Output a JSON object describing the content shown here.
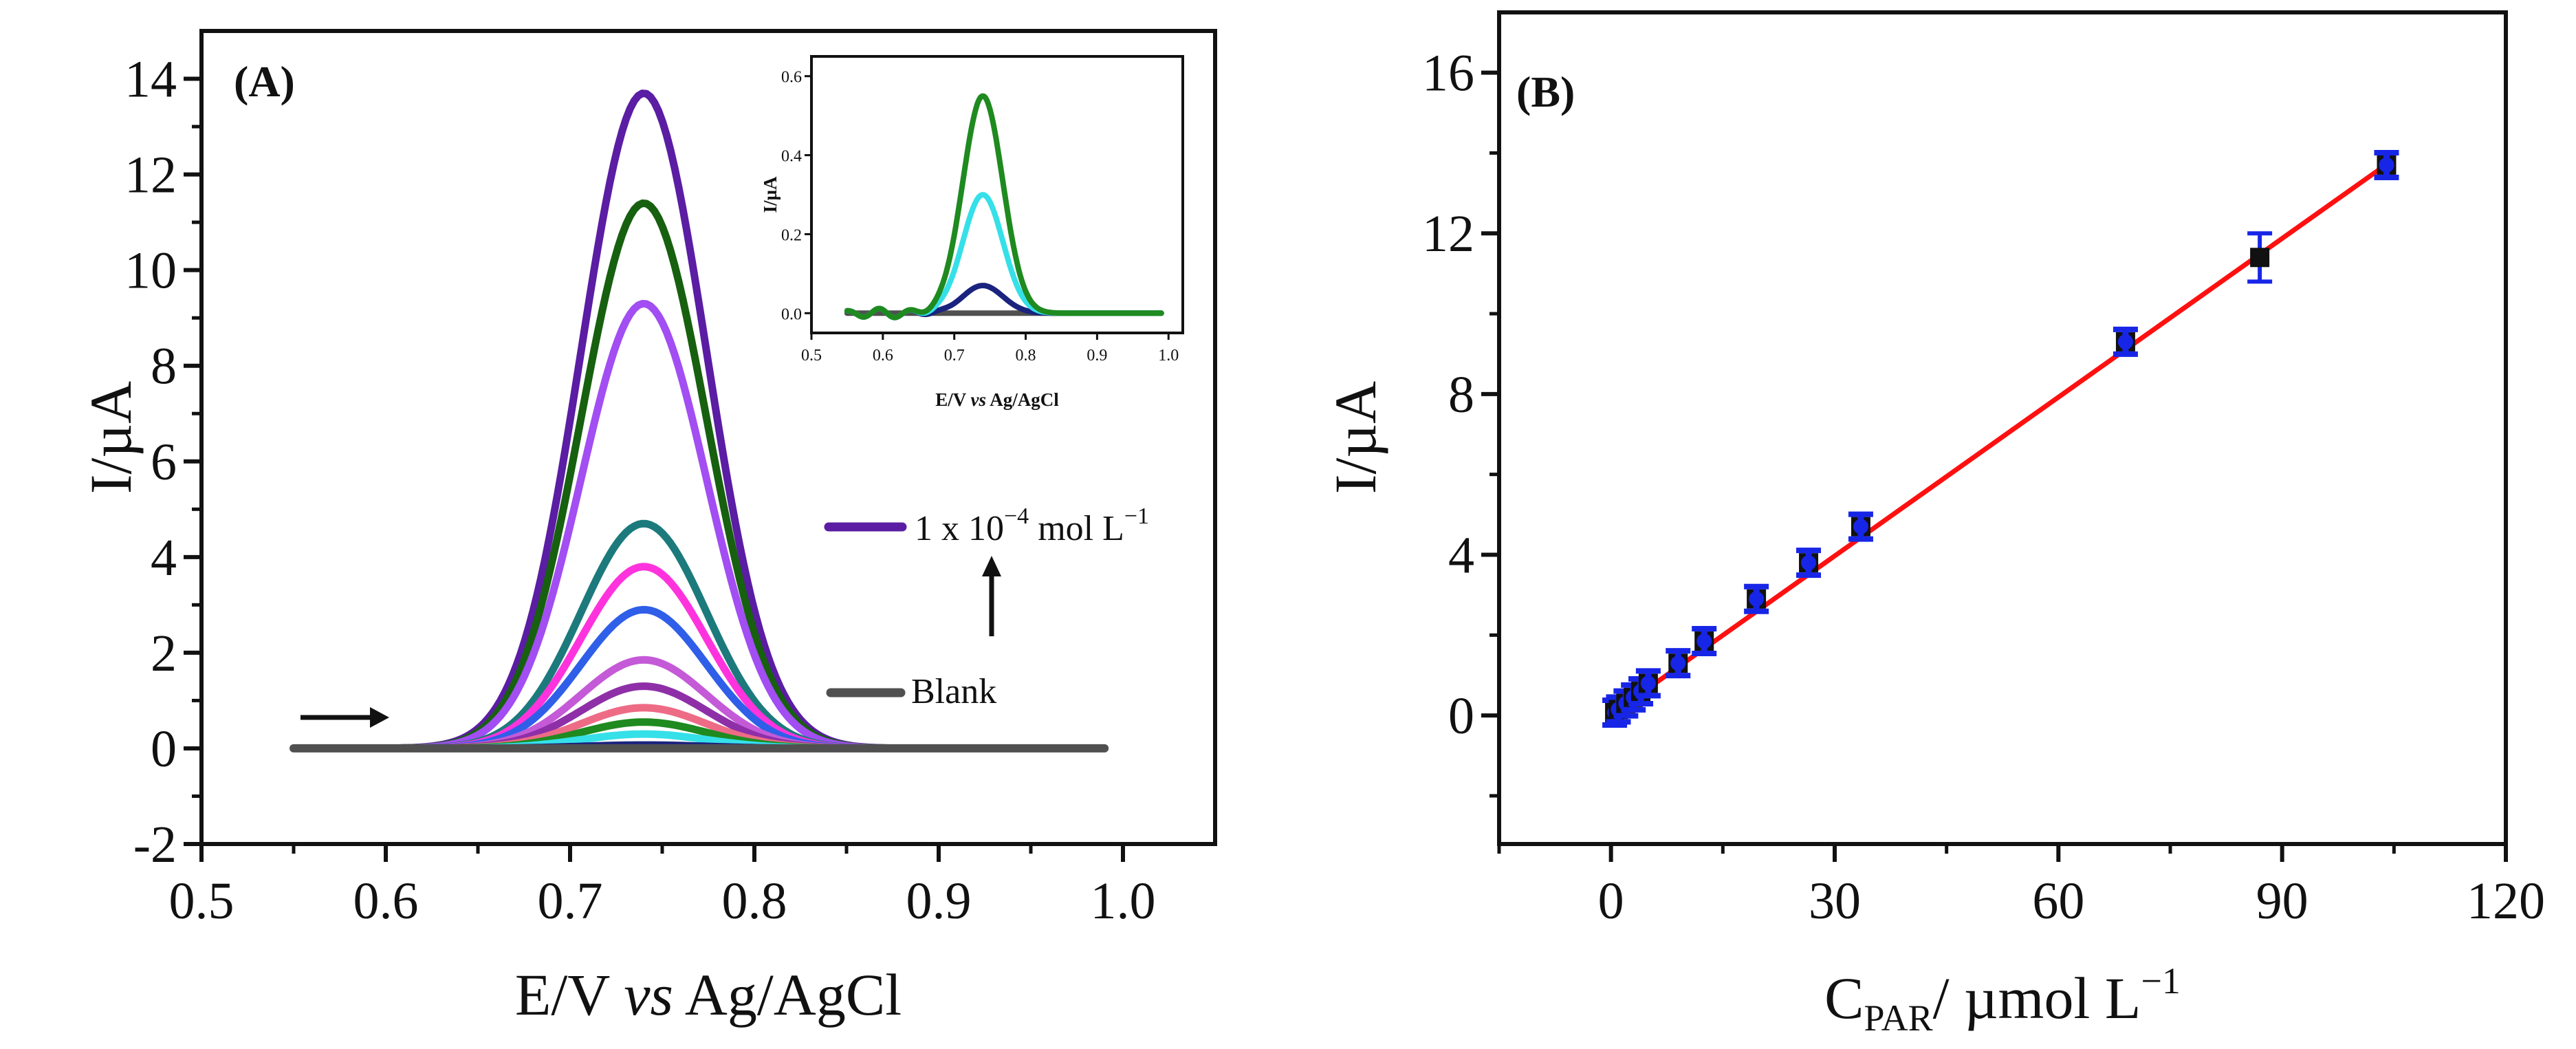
{
  "panel_a_label": "(A)",
  "panel_b_label": "(B)",
  "colors": {
    "red_fit": "#ff1010",
    "blue_point": "#1726e6",
    "blank": "#505050"
  },
  "chart_data": [
    {
      "type": "line",
      "panel": "A",
      "xlabel_prefix": "E/V ",
      "xlabel_italic": "vs",
      "xlabel_suffix": " Ag/AgCl",
      "ylabel": "I/µA",
      "xlim": [
        0.5,
        1.05
      ],
      "ylim": [
        -2,
        15
      ],
      "xticks": [
        0.5,
        0.6,
        0.7,
        0.8,
        0.9,
        1.0
      ],
      "xtick_labels": [
        "0.5",
        "0.6",
        "0.7",
        "0.8",
        "0.9",
        "1.0"
      ],
      "yticks": [
        -2,
        0,
        2,
        4,
        6,
        8,
        10,
        12,
        14
      ],
      "ytick_labels": [
        "-2",
        "0",
        "2",
        "4",
        "6",
        "8",
        "10",
        "12",
        "14"
      ],
      "peak_potential": 0.74,
      "baseline_start": 0.55,
      "baseline_end": 0.99,
      "series": [
        {
          "name": "s1",
          "peak": 13.7,
          "color": "#5a1da3"
        },
        {
          "name": "s2",
          "peak": 11.4,
          "color": "#17600f"
        },
        {
          "name": "s3",
          "peak": 9.3,
          "color": "#a24ef2"
        },
        {
          "name": "s4",
          "peak": 4.7,
          "color": "#1c7a7c"
        },
        {
          "name": "s5",
          "peak": 3.8,
          "color": "#ff33dd"
        },
        {
          "name": "s6",
          "peak": 2.9,
          "color": "#2f5fe8"
        },
        {
          "name": "s7",
          "peak": 1.85,
          "color": "#c45ad7"
        },
        {
          "name": "s8",
          "peak": 1.3,
          "color": "#8e2fa8"
        },
        {
          "name": "s9",
          "peak": 0.85,
          "color": "#ee6b86"
        },
        {
          "name": "s10",
          "peak": 0.55,
          "color": "#1f8a1f"
        },
        {
          "name": "s11",
          "peak": 0.3,
          "color": "#35e0e8"
        },
        {
          "name": "s12",
          "peak": 0.07,
          "color": "#1a237e"
        },
        {
          "name": "Blank",
          "peak": 0.0,
          "color": "#505050"
        }
      ],
      "legend": [
        {
          "label_prefix": "1 x 10",
          "label_exp": "−4",
          "label_mid": " mol L",
          "label_exp2": "−1",
          "color": "#5a1da3"
        },
        {
          "label": "Blank",
          "color": "#505050"
        }
      ],
      "inset": {
        "xlabel_prefix": "E/V ",
        "xlabel_italic": "vs",
        "xlabel_suffix": " Ag/AgCl",
        "ylabel": "I/µA",
        "xlim": [
          0.5,
          1.02
        ],
        "ylim": [
          -0.05,
          0.65
        ],
        "xticks": [
          0.5,
          0.6,
          0.7,
          0.8,
          0.9,
          1.0
        ],
        "xtick_labels": [
          "0.5",
          "0.6",
          "0.7",
          "0.8",
          "0.9",
          "1.0"
        ],
        "yticks": [
          0.0,
          0.2,
          0.4,
          0.6
        ],
        "ytick_labels": [
          "0.0",
          "0.2",
          "0.4",
          "0.6"
        ],
        "series": [
          {
            "name": "i1",
            "peak": 0.55,
            "color": "#1f8a1f"
          },
          {
            "name": "i2",
            "peak": 0.3,
            "color": "#35e0e8"
          },
          {
            "name": "i3",
            "peak": 0.07,
            "color": "#1a237e"
          },
          {
            "name": "iBlank",
            "peak": 0.0,
            "color": "#505050"
          }
        ]
      }
    },
    {
      "type": "scatter",
      "panel": "B",
      "xlabel_main": "C",
      "xlabel_sub": "PAR",
      "xlabel_unit": "/ µmol L",
      "xlabel_exp": "−1",
      "ylabel": "I/µA",
      "xlim": [
        -15,
        120
      ],
      "ylim": [
        -3.2,
        17.5
      ],
      "xticks": [
        0,
        30,
        60,
        90,
        120
      ],
      "xtick_labels": [
        "0",
        "30",
        "60",
        "90",
        "120"
      ],
      "yticks": [
        0,
        4,
        8,
        12,
        16
      ],
      "ytick_labels": [
        "0",
        "4",
        "8",
        "12",
        "16"
      ],
      "x": [
        0.5,
        1.0,
        2.0,
        3.0,
        4.0,
        5.0,
        9.0,
        12.5,
        19.5,
        26.5,
        33.5,
        69.0,
        87.0,
        104.0
      ],
      "y": [
        0.07,
        0.15,
        0.3,
        0.45,
        0.6,
        0.8,
        1.3,
        1.85,
        2.9,
        3.8,
        4.7,
        9.3,
        11.4,
        13.7
      ],
      "errors": [
        0.05,
        0.05,
        0.05,
        0.05,
        0.05,
        0.05,
        0.05,
        0.08,
        0.1,
        0.1,
        0.1,
        0.1,
        0.6,
        0.1
      ],
      "fit": {
        "slope": 0.1317,
        "intercept": 0.02,
        "x_range": [
          0,
          104
        ]
      }
    }
  ]
}
